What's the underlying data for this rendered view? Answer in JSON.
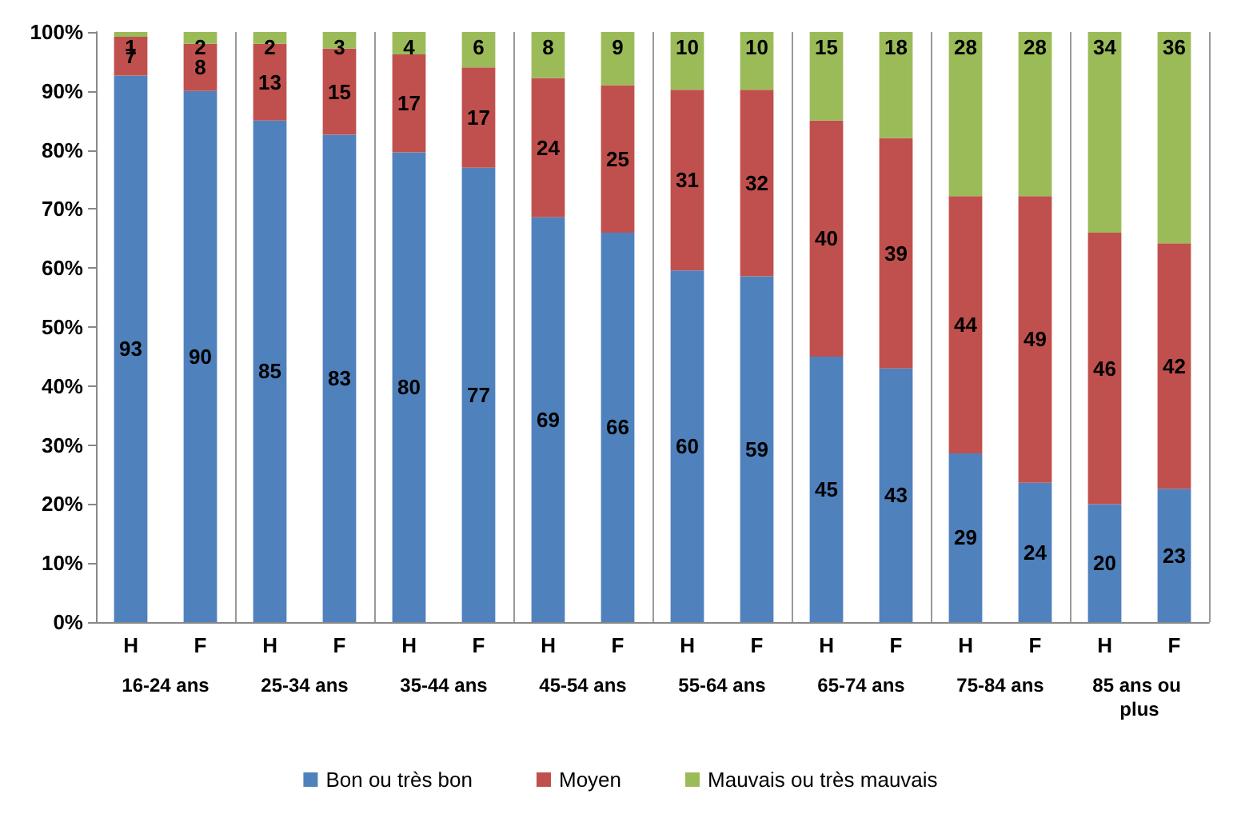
{
  "chart_data": {
    "type": "bar",
    "stacked": true,
    "categories": [
      "H",
      "F",
      "H",
      "F",
      "H",
      "F",
      "H",
      "F",
      "H",
      "F",
      "H",
      "F",
      "H",
      "F",
      "H",
      "F"
    ],
    "annotations": [
      "16-24 ans",
      "25-34 ans",
      "35-44 ans",
      "45-54 ans",
      "55-64 ans",
      "65-74 ans",
      "75-84 ans",
      "85 ans ou plus"
    ],
    "series": [
      {
        "name": "Bon ou très bon",
        "color": "#4f81bd",
        "values": [
          92.6,
          90,
          85,
          82.6,
          79.6,
          77,
          68.6,
          66,
          59.6,
          58.6,
          45,
          43,
          28.6,
          23.6,
          20,
          22.6
        ],
        "value_labels": [
          "93",
          "90",
          "85",
          "83",
          "80",
          "77",
          "69",
          "66",
          "60",
          "59",
          "45",
          "43",
          "29",
          "24",
          "20",
          "23"
        ]
      },
      {
        "name": "Moyen",
        "color": "#c0504d",
        "values": [
          6.6,
          8,
          13,
          14.6,
          16.6,
          17,
          23.6,
          25,
          30.6,
          31.6,
          40,
          39,
          43.6,
          48.6,
          46,
          41.6
        ],
        "value_labels": [
          "7",
          "8",
          "13",
          "15",
          "17",
          "17",
          "24",
          "25",
          "31",
          "32",
          "40",
          "39",
          "44",
          "49",
          "46",
          "42"
        ]
      },
      {
        "name": "Mauvais ou très mauvais",
        "color": "#9bbb59",
        "values": [
          0.8,
          2,
          2,
          2.8,
          3.8,
          6,
          7.8,
          9,
          9.8,
          9.8,
          15,
          18,
          27.8,
          27.8,
          34,
          35.8
        ],
        "value_labels": [
          "1",
          "2",
          "2",
          "3",
          "4",
          "6",
          "8",
          "9",
          "10",
          "10",
          "15",
          "18",
          "28",
          "28",
          "34",
          "36"
        ]
      }
    ],
    "ylim": [
      0,
      100
    ],
    "yticks": [
      {
        "value": 0,
        "label": "0%"
      },
      {
        "value": 10,
        "label": "10%"
      },
      {
        "value": 20,
        "label": "20%"
      },
      {
        "value": 30,
        "label": "30%"
      },
      {
        "value": 40,
        "label": "40%"
      },
      {
        "value": 50,
        "label": "50%"
      },
      {
        "value": 60,
        "label": "60%"
      },
      {
        "value": 70,
        "label": "70%"
      },
      {
        "value": 80,
        "label": "80%"
      },
      {
        "value": 90,
        "label": "90%"
      },
      {
        "value": 100,
        "label": "100%"
      }
    ],
    "grid": false,
    "legend": "bottom"
  }
}
